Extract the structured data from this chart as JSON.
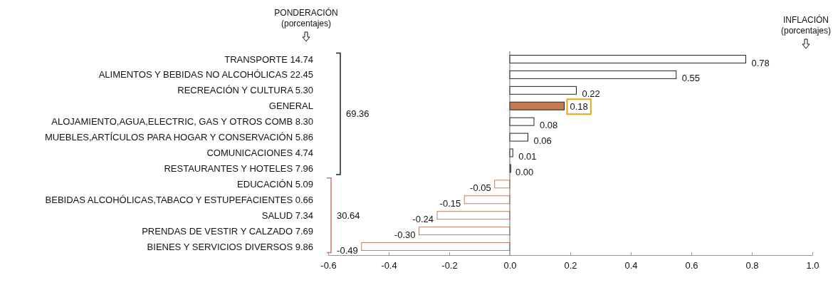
{
  "chart_data": {
    "type": "bar",
    "orientation": "horizontal",
    "categories": [
      "TRANSPORTE 14.74",
      "ALIMENTOS Y BEBIDAS NO ALCOHÓLICAS 22.45",
      "RECREACIÓN Y CULTURA 5.30",
      "GENERAL",
      "ALOJAMIENTO,AGUA,ELECTRIC, GAS Y OTROS COMB 8.30",
      "MUEBLES,ARTÍCULOS PARA HOGAR Y CONSERVACIÓN 5.86",
      "COMUNICACIONES 4.74",
      "RESTAURANTES Y HOTELES 7.96",
      "EDUCACIÓN 5.09",
      "BEBIDAS ALCOHÓLICAS,TABACO Y ESTUPEFACIENTES 0.66",
      "SALUD 7.34",
      "PRENDAS DE VESTIR Y CALZADO 7.69",
      "BIENES Y SERVICIOS DIVERSOS 9.86"
    ],
    "values": [
      0.78,
      0.55,
      0.22,
      0.18,
      0.08,
      0.06,
      0.01,
      0.0,
      -0.05,
      -0.15,
      -0.24,
      -0.3,
      -0.49
    ],
    "value_labels": [
      "0.78",
      "0.55",
      "0.22",
      "0.18",
      "0.08",
      "0.06",
      "0.01",
      "0.00",
      "-0.05",
      "-0.15",
      "-0.24",
      "-0.30",
      "-0.49"
    ],
    "colors": [
      "#ffffff",
      "#ffffff",
      "#ffffff",
      "#c8784e",
      "#ffffff",
      "#ffffff",
      "#ffffff",
      "#ffffff",
      "#ffffff",
      "#ffffff",
      "#ffffff",
      "#ffffff",
      "#ffffff"
    ],
    "xlim": [
      -0.6,
      1.0
    ],
    "xticks": [
      -0.6,
      -0.4,
      -0.2,
      {
        "value": 0,
        "label": "0.0"
      },
      0.2,
      0.4,
      0.6,
      0.8,
      {
        "value": 1,
        "label": "1.0"
      }
    ],
    "annotations": [
      "PONDERACIÓN\n(porcentajes)",
      "INFLACIÓN\n(porcentajes)",
      "69.36",
      "30.64"
    ]
  }
}
